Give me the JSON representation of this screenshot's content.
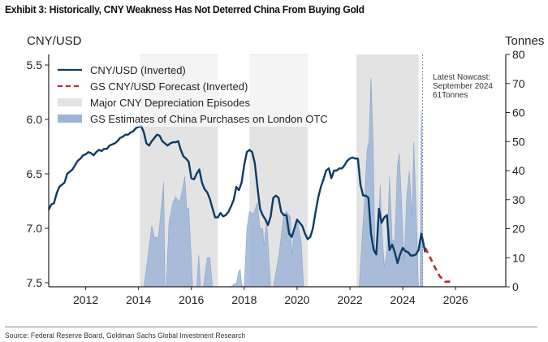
{
  "title": "Exhibit 3: Historically, CNY Weakness Has Not Deterred China From Buying Gold",
  "source": "Source: Federal Reserve Board, Goldman Sachs Global Investment Research",
  "chart_data": {
    "type": "line",
    "title": "Exhibit 3: Historically, CNY Weakness Has Not Deterred China From Buying Gold",
    "xlabel": "",
    "ylabel_left": "CNY/USD",
    "ylabel_right": "Tonnes",
    "xlim": [
      2010.6,
      2027.9
    ],
    "ylim_left": [
      7.53,
      5.4
    ],
    "ylim_left_inverted": true,
    "ylim_right": [
      0,
      80
    ],
    "x_ticks": [
      "2012",
      "2014",
      "2016",
      "2018",
      "2020",
      "2022",
      "2024",
      "2026"
    ],
    "y_ticks_left": [
      "5.5",
      "6.0",
      "6.5",
      "7.0",
      "7.5"
    ],
    "y_ticks_right": [
      "0",
      "10",
      "20",
      "30",
      "40",
      "50",
      "60",
      "70",
      "80"
    ],
    "grid": false,
    "legend_position": "top-left",
    "legend": [
      "CNY/USD (Inverted)",
      "GS CNY/USD Forecast (Inverted)",
      "Major CNY Depreciation Episodes",
      "GS Estimates of China Purchases on London OTC"
    ],
    "colors": {
      "cny": "#0d3b66",
      "forecast": "#c0282d",
      "episodes": "#e3e3e3",
      "purchases": "#9db4d6",
      "purchases_edge": "#8aa7cf"
    },
    "annotation": {
      "lines": [
        "Latest Nowcast:",
        "September 2024",
        "61Tonnes"
      ],
      "x": 2024.75
    },
    "depreciation_episodes": [
      {
        "start": 2014.05,
        "end": 2017.0
      },
      {
        "start": 2018.2,
        "end": 2020.4
      },
      {
        "start": 2022.25,
        "end": 2024.6
      }
    ],
    "series": [
      {
        "name": "CNY/USD (Inverted)",
        "axis": "left",
        "x": [
          2010.6,
          2010.7,
          2010.8,
          2010.9,
          2011.0,
          2011.1,
          2011.2,
          2011.3,
          2011.4,
          2011.5,
          2011.6,
          2011.7,
          2011.8,
          2011.9,
          2012.0,
          2012.1,
          2012.2,
          2012.3,
          2012.4,
          2012.5,
          2012.6,
          2012.7,
          2012.8,
          2012.9,
          2013.0,
          2013.1,
          2013.2,
          2013.3,
          2013.4,
          2013.5,
          2013.6,
          2013.7,
          2013.8,
          2013.9,
          2014.0,
          2014.1,
          2014.2,
          2014.3,
          2014.4,
          2014.5,
          2014.6,
          2014.7,
          2014.8,
          2014.9,
          2015.0,
          2015.1,
          2015.2,
          2015.3,
          2015.4,
          2015.5,
          2015.6,
          2015.7,
          2015.8,
          2015.9,
          2016.0,
          2016.1,
          2016.2,
          2016.3,
          2016.4,
          2016.5,
          2016.6,
          2016.7,
          2016.8,
          2016.9,
          2017.0,
          2017.1,
          2017.2,
          2017.3,
          2017.4,
          2017.5,
          2017.6,
          2017.7,
          2017.8,
          2017.9,
          2018.0,
          2018.1,
          2018.2,
          2018.3,
          2018.4,
          2018.5,
          2018.6,
          2018.7,
          2018.8,
          2018.9,
          2019.0,
          2019.1,
          2019.2,
          2019.3,
          2019.4,
          2019.5,
          2019.6,
          2019.7,
          2019.8,
          2019.9,
          2020.0,
          2020.1,
          2020.2,
          2020.3,
          2020.4,
          2020.5,
          2020.6,
          2020.7,
          2020.8,
          2020.9,
          2021.0,
          2021.1,
          2021.2,
          2021.3,
          2021.4,
          2021.5,
          2021.6,
          2021.7,
          2021.8,
          2021.9,
          2022.0,
          2022.1,
          2022.2,
          2022.3,
          2022.4,
          2022.5,
          2022.6,
          2022.7,
          2022.8,
          2022.9,
          2023.0,
          2023.1,
          2023.2,
          2023.3,
          2023.4,
          2023.5,
          2023.6,
          2023.7,
          2023.8,
          2023.9,
          2024.0,
          2024.1,
          2024.2,
          2024.3,
          2024.4,
          2024.5,
          2024.6,
          2024.7,
          2024.75,
          2024.85
        ],
        "values": [
          6.83,
          6.78,
          6.77,
          6.68,
          6.62,
          6.6,
          6.58,
          6.5,
          6.48,
          6.46,
          6.42,
          6.38,
          6.36,
          6.33,
          6.32,
          6.3,
          6.31,
          6.33,
          6.3,
          6.28,
          6.29,
          6.27,
          6.27,
          6.24,
          6.23,
          6.22,
          6.2,
          6.17,
          6.16,
          6.14,
          6.14,
          6.12,
          6.11,
          6.08,
          6.07,
          6.06,
          6.12,
          6.22,
          6.24,
          6.2,
          6.17,
          6.14,
          6.15,
          6.2,
          6.22,
          6.24,
          6.22,
          6.21,
          6.21,
          6.2,
          6.28,
          6.34,
          6.36,
          6.39,
          6.54,
          6.55,
          6.5,
          6.46,
          6.58,
          6.64,
          6.67,
          6.73,
          6.82,
          6.9,
          6.9,
          6.86,
          6.89,
          6.88,
          6.85,
          6.8,
          6.74,
          6.62,
          6.65,
          6.58,
          6.42,
          6.3,
          6.28,
          6.3,
          6.4,
          6.62,
          6.82,
          6.88,
          6.92,
          6.97,
          6.89,
          6.72,
          6.7,
          6.72,
          6.85,
          6.88,
          6.88,
          7.05,
          7.08,
          7.0,
          6.92,
          6.95,
          6.98,
          7.05,
          7.1,
          7.08,
          7.0,
          6.85,
          6.72,
          6.62,
          6.55,
          6.47,
          6.45,
          6.54,
          6.47,
          6.47,
          6.45,
          6.45,
          6.42,
          6.38,
          6.36,
          6.35,
          6.36,
          6.36,
          6.6,
          6.7,
          6.7,
          6.72,
          7.05,
          7.2,
          7.24,
          6.82,
          6.95,
          6.9,
          6.88,
          7.2,
          7.15,
          7.22,
          7.32,
          7.24,
          7.18,
          7.21,
          7.22,
          7.25,
          7.25,
          7.24,
          7.2,
          7.05,
          7.1,
          7.22
        ]
      },
      {
        "name": "GS CNY/USD Forecast (Inverted)",
        "axis": "left",
        "style": "dashed",
        "x": [
          2024.85,
          2025.0,
          2025.2,
          2025.4,
          2025.6,
          2025.8,
          2025.95
        ],
        "values": [
          7.18,
          7.25,
          7.35,
          7.44,
          7.49,
          7.49,
          7.49
        ]
      },
      {
        "name": "GS Estimates of China Purchases on London OTC",
        "axis": "right",
        "type": "area",
        "x": [
          2014.2,
          2014.35,
          2014.5,
          2014.6,
          2014.75,
          2014.95,
          2015.0,
          2015.05,
          2015.15,
          2015.3,
          2015.4,
          2015.55,
          2015.65,
          2015.75,
          2015.82,
          2015.9,
          2016.05,
          2016.2,
          2016.28,
          2016.35,
          2016.45,
          2016.6,
          2016.7,
          2016.8,
          2016.9,
          2017.0,
          2017.5,
          2017.62,
          2017.7,
          2017.78,
          2017.85,
          2017.9,
          2017.95,
          2018.0,
          2018.1,
          2018.2,
          2018.35,
          2018.5,
          2018.6,
          2018.7,
          2018.75,
          2018.85,
          2018.92,
          2019.0,
          2019.1,
          2019.3,
          2019.5,
          2019.6,
          2019.75,
          2019.8,
          2019.9,
          2020.0,
          2020.15,
          2020.25,
          2020.3,
          2022.35,
          2022.45,
          2022.55,
          2022.65,
          2022.72,
          2022.8,
          2022.88,
          2022.95,
          2023.05,
          2023.15,
          2023.2,
          2023.3,
          2023.4,
          2023.5,
          2023.6,
          2023.7,
          2023.8,
          2023.87,
          2023.95,
          2024.05,
          2024.15,
          2024.25,
          2024.35,
          2024.42,
          2024.5,
          2024.6,
          2024.65,
          2024.7,
          2024.73,
          2024.75
        ],
        "values": [
          0,
          10,
          21,
          17,
          17,
          36,
          0,
          0,
          22,
          29,
          31,
          29,
          33,
          38,
          27,
          27,
          0,
          0,
          11,
          0,
          0,
          10,
          10,
          0,
          0,
          0,
          0,
          1,
          1,
          5,
          6,
          1,
          0,
          0,
          20,
          26,
          25,
          29,
          20,
          20,
          14,
          23,
          12,
          0,
          0,
          10,
          25,
          26,
          24,
          11,
          20,
          23,
          16,
          0,
          0,
          0,
          15,
          29,
          47,
          50,
          72,
          50,
          12,
          16,
          35,
          22,
          7,
          12,
          38,
          16,
          16,
          42,
          46,
          30,
          8,
          31,
          40,
          24,
          50,
          28,
          0,
          0,
          61,
          50,
          0
        ]
      }
    ]
  }
}
